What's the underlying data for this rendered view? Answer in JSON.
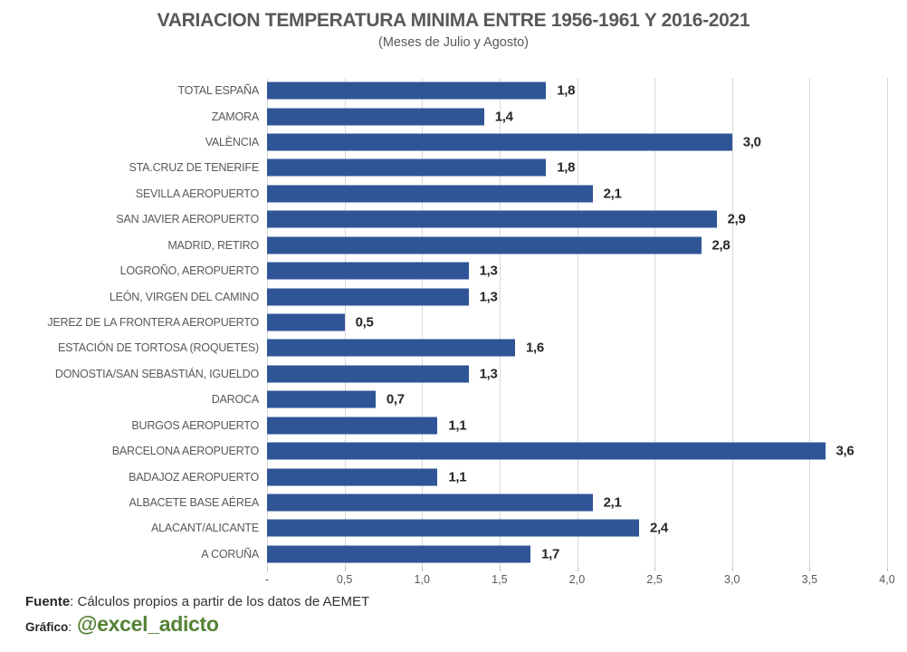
{
  "header": {
    "title": "VARIACION TEMPERATURA MINIMA ENTRE 1956-1961 Y 2016-2021",
    "subtitle": "(Meses de Julio y Agosto)"
  },
  "chart_data": {
    "type": "bar",
    "orientation": "horizontal",
    "title": "VARIACION TEMPERATURA MINIMA ENTRE 1956-1961 Y 2016-2021",
    "subtitle": "(Meses de Julio y Agosto)",
    "categories": [
      "TOTAL ESPAÑA",
      "ZAMORA",
      "VALÈNCIA",
      "STA.CRUZ DE TENERIFE",
      "SEVILLA AEROPUERTO",
      "SAN JAVIER AEROPUERTO",
      "MADRID, RETIRO",
      "LOGROÑO, AEROPUERTO",
      "LEÓN, VIRGEN DEL CAMINO",
      "JEREZ DE LA FRONTERA AEROPUERTO",
      "ESTACIÓN DE TORTOSA (ROQUETES)",
      "DONOSTIA/SAN SEBASTIÁN, IGUELDO",
      "DAROCA",
      "BURGOS AEROPUERTO",
      "BARCELONA AEROPUERTO",
      "BADAJOZ AEROPUERTO",
      "ALBACETE BASE AÉREA",
      "ALACANT/ALICANTE",
      "A CORUÑA"
    ],
    "values": [
      1.8,
      1.4,
      3.0,
      1.8,
      2.1,
      2.9,
      2.8,
      1.3,
      1.3,
      0.5,
      1.6,
      1.3,
      0.7,
      1.1,
      3.6,
      1.1,
      2.1,
      2.4,
      1.7
    ],
    "value_labels": [
      "1,8",
      "1,4",
      "3,0",
      "1,8",
      "2,1",
      "2,9",
      "2,8",
      "1,3",
      "1,3",
      "0,5",
      "1,6",
      "1,3",
      "0,7",
      "1,1",
      "3,6",
      "1,1",
      "2,1",
      "2,4",
      "1,7"
    ],
    "xlim": [
      0,
      4
    ],
    "xticks": [
      {
        "value": 0,
        "label": "-"
      },
      {
        "value": 0.5,
        "label": "0,5"
      },
      {
        "value": 1.0,
        "label": "1,0"
      },
      {
        "value": 1.5,
        "label": "1,5"
      },
      {
        "value": 2.0,
        "label": "2,0"
      },
      {
        "value": 2.5,
        "label": "2,5"
      },
      {
        "value": 3.0,
        "label": "3,0"
      },
      {
        "value": 3.5,
        "label": "3,5"
      },
      {
        "value": 4.0,
        "label": "4,0"
      }
    ],
    "grid": true,
    "legend": false,
    "bar_color": "#2F5597",
    "gridline_color": "#D9D9D9"
  },
  "footer": {
    "source_label": "Fuente",
    "source_text": ": Cálculos propios a partir de los datos de AEMET",
    "credit_label": "Gráfico",
    "credit_sep": ":",
    "credit_handle": "@excel_adicto",
    "credit_color": "#548235"
  }
}
